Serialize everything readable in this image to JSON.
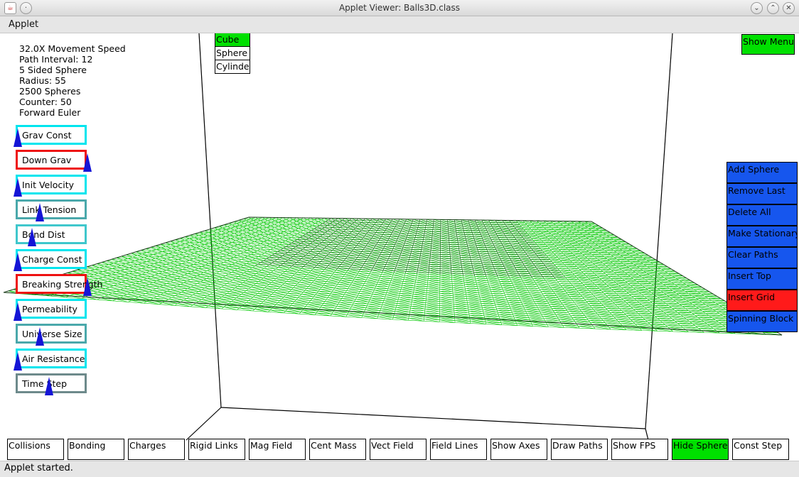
{
  "window": {
    "title": "Applet Viewer: Balls3D.class",
    "icon": "java-icon",
    "controls": [
      "minimize",
      "maximize",
      "close"
    ]
  },
  "menubar": {
    "items": [
      "Applet"
    ]
  },
  "info": [
    "32.0X Movement Speed",
    "Path Interval: 12",
    "5 Sided Sphere",
    "Radius: 55",
    "2500 Spheres",
    "Counter: 50",
    "Forward Euler"
  ],
  "sliders": [
    {
      "label": "Grav Const",
      "color": "#00e5ee",
      "level": 0.0
    },
    {
      "label": "Down Grav",
      "color": "#ee1111",
      "level": 1.0
    },
    {
      "label": "Init Velocity",
      "color": "#00e5ee",
      "level": 0.0
    },
    {
      "label": "Link Tension",
      "color": "#4aa8ab",
      "level": 0.32
    },
    {
      "label": "Bond Dist",
      "color": "#3fc7cc",
      "level": 0.2
    },
    {
      "label": "Charge Const",
      "color": "#00e5ee",
      "level": 0.0
    },
    {
      "label": "Breaking Strength",
      "color": "#ee1111",
      "level": 1.0
    },
    {
      "label": "Permeability",
      "color": "#00e5ee",
      "level": 0.0
    },
    {
      "label": "Universe Size",
      "color": "#4aa8ab",
      "level": 0.32
    },
    {
      "label": "Air Resistance",
      "color": "#00e5ee",
      "level": 0.0
    },
    {
      "label": "Time Step",
      "color": "#6d8a8b",
      "level": 0.45
    }
  ],
  "shapes": [
    {
      "label": "Cube",
      "active": true
    },
    {
      "label": "Sphere",
      "active": false
    },
    {
      "label": "Cylinder",
      "active": false
    }
  ],
  "show_menu": "Show Menu",
  "actions": [
    {
      "label": "Add Sphere",
      "on": false
    },
    {
      "label": "Remove Last",
      "on": false
    },
    {
      "label": "Delete All",
      "on": false
    },
    {
      "label": "Make Stationary",
      "on": false
    },
    {
      "label": "Clear Paths",
      "on": false
    },
    {
      "label": "Insert Top",
      "on": false
    },
    {
      "label": "Insert Grid",
      "on": true
    },
    {
      "label": "Spinning Block",
      "on": false
    }
  ],
  "toggles": [
    {
      "label": "Collisions",
      "on": false
    },
    {
      "label": "Bonding",
      "on": false
    },
    {
      "label": "Charges",
      "on": false
    },
    {
      "label": "Rigid Links",
      "on": false
    },
    {
      "label": "Mag Field",
      "on": false
    },
    {
      "label": "Cent Mass",
      "on": false
    },
    {
      "label": "Vect Field",
      "on": false
    },
    {
      "label": "Field Lines",
      "on": false
    },
    {
      "label": "Show Axes",
      "on": false
    },
    {
      "label": "Draw Paths",
      "on": false
    },
    {
      "label": "Show FPS",
      "on": false
    },
    {
      "label": "Hide Spheres",
      "on": true
    },
    {
      "label": "Const Step",
      "on": false
    }
  ],
  "status": "Applet started.",
  "colors": {
    "mesh": "#00c800",
    "active_green": "#00e000",
    "action_blue": "#1656ee",
    "active_red": "#ff1a1a"
  }
}
